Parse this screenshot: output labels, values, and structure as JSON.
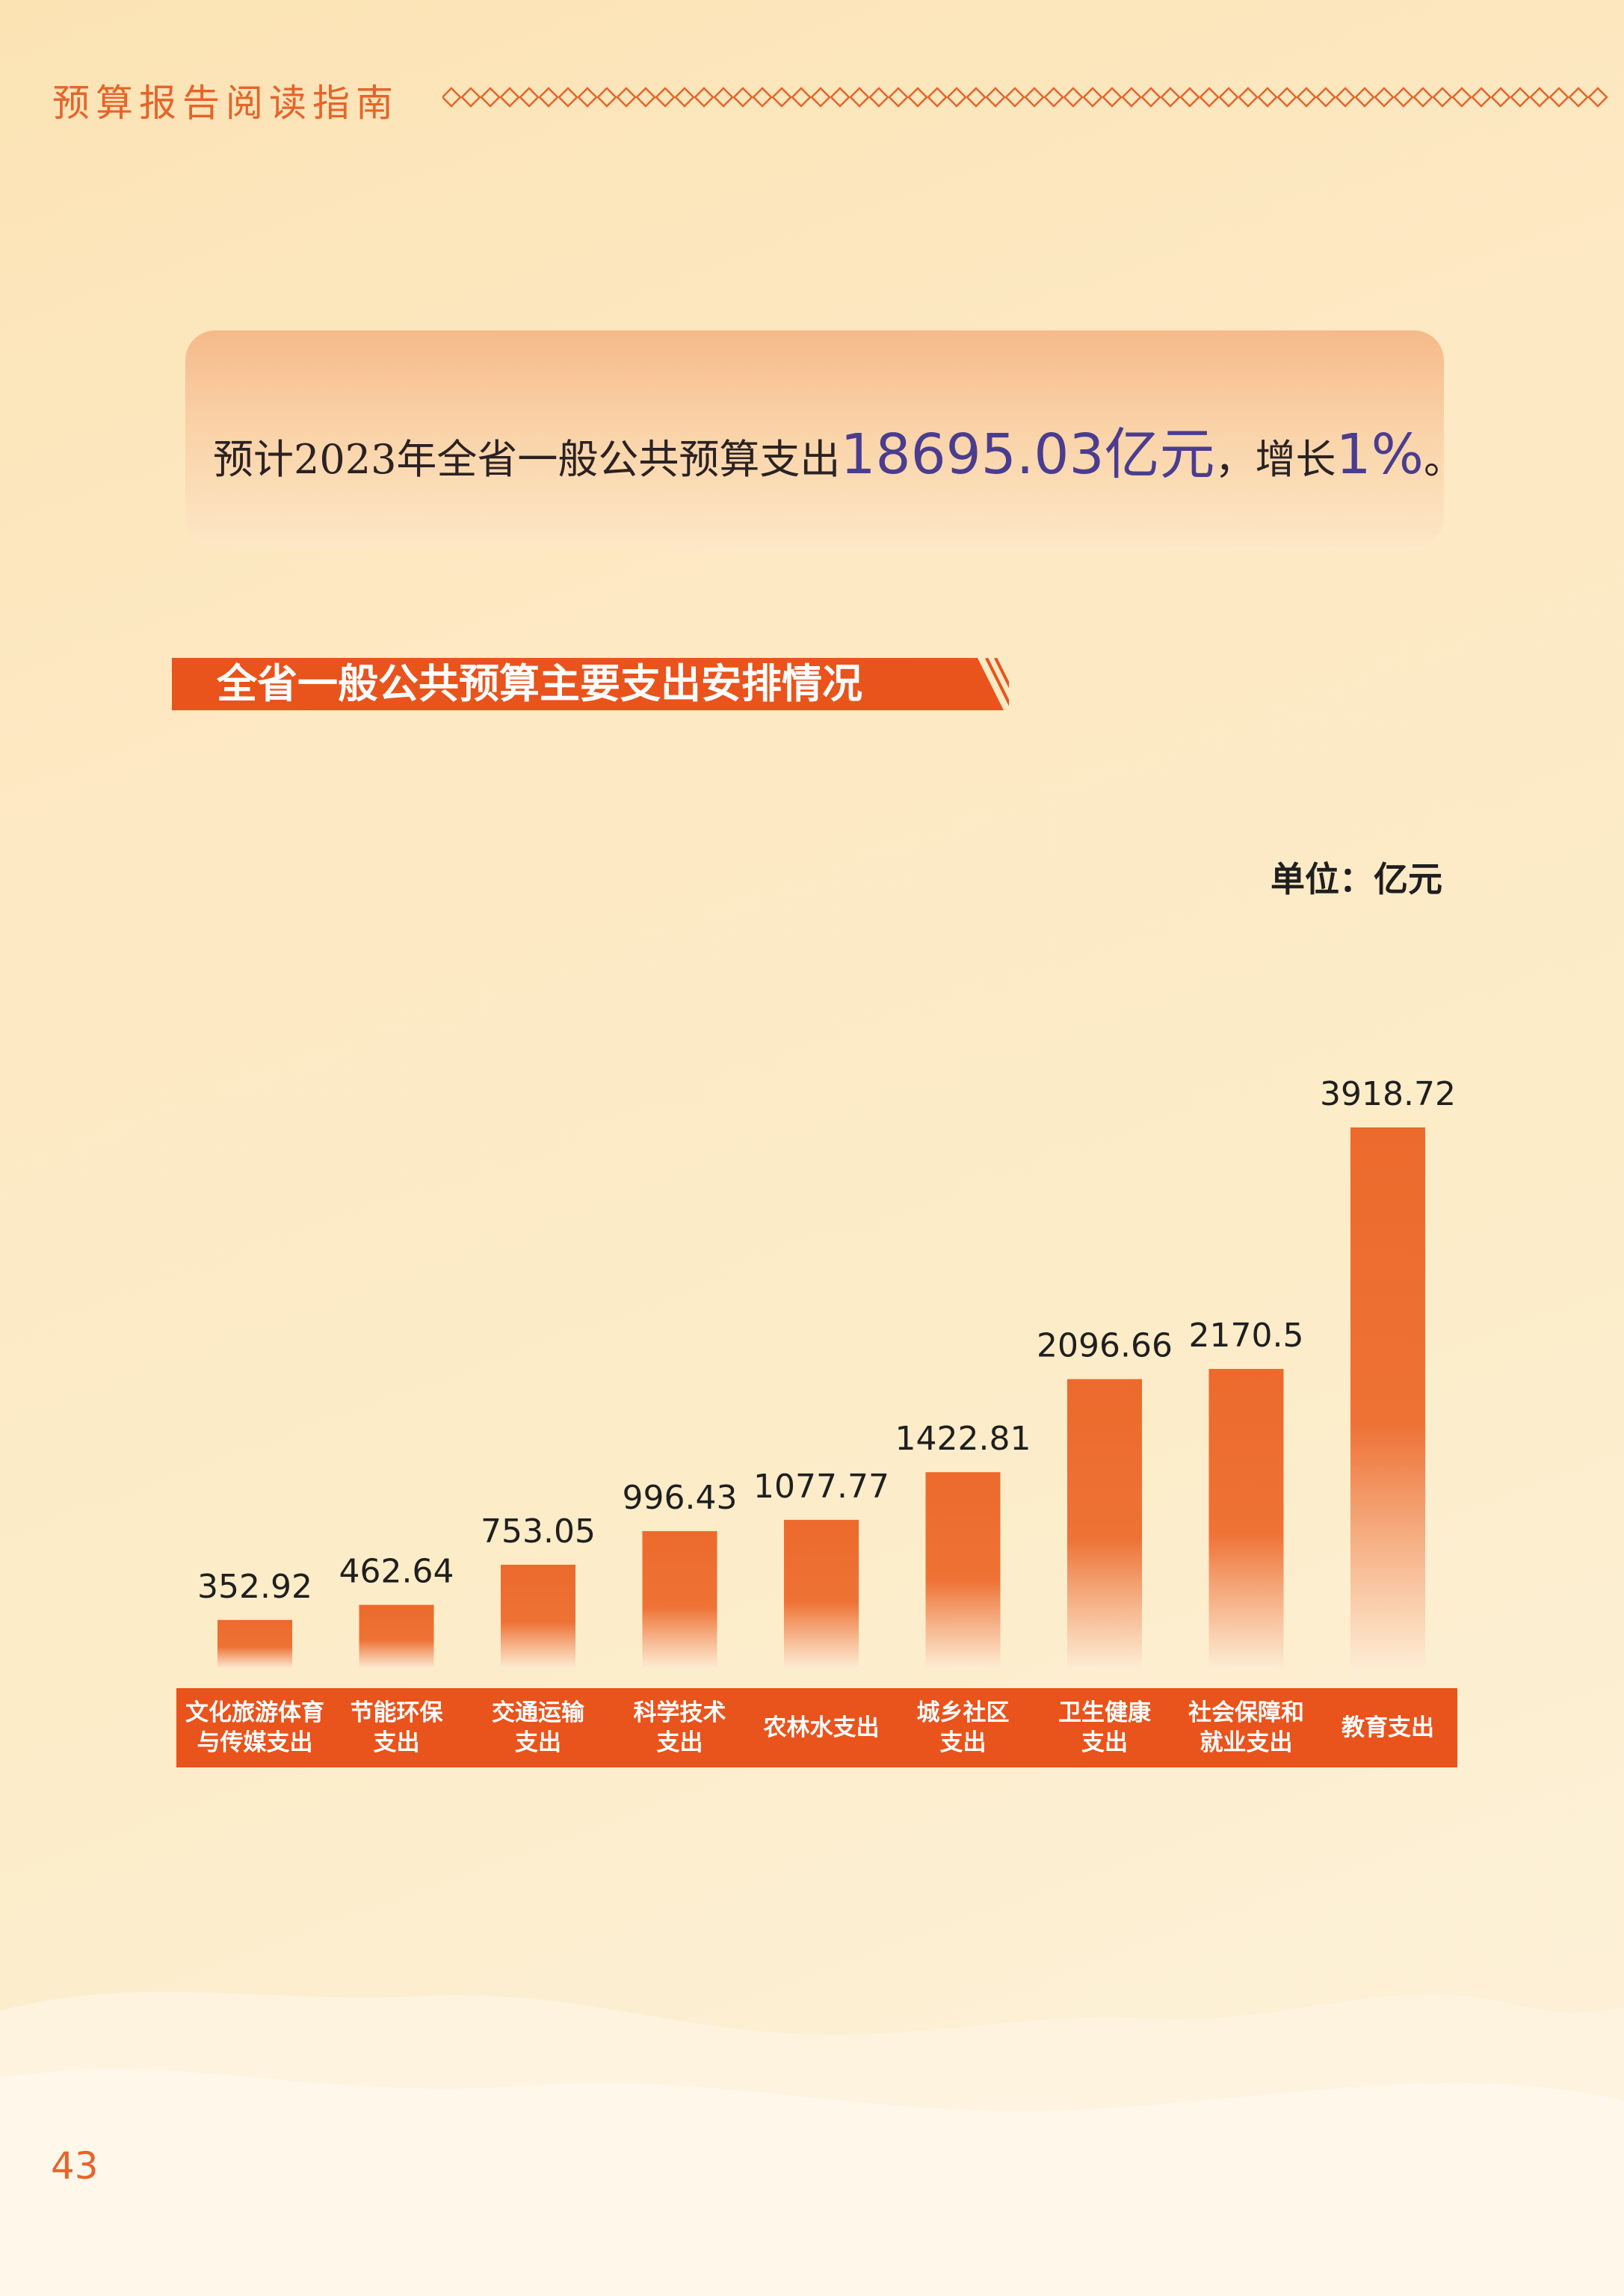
{
  "header": {
    "title": "预算报告阅读指南"
  },
  "summary": {
    "prefix": "预计2023年全省一般公共预算支出",
    "amount": "18695.03亿元",
    "middle": "，增长",
    "growth": "1%",
    "suffix": "。"
  },
  "section": {
    "title": "全省一般公共预算主要支出安排情况"
  },
  "unit": "单位：亿元",
  "page_number": "43",
  "colors": {
    "accent": "#e9531c",
    "bar": "#ec6a2c",
    "highlight": "#4a3d8f"
  },
  "chart_data": {
    "type": "bar",
    "categories": [
      [
        "文化旅游体育",
        "与传媒支出"
      ],
      [
        "节能环保",
        "支出"
      ],
      [
        "交通运输",
        "支出"
      ],
      [
        "科学技术",
        "支出"
      ],
      [
        "农林水支出"
      ],
      [
        "城乡社区",
        "支出"
      ],
      [
        "卫生健康",
        "支出"
      ],
      [
        "社会保障和",
        "就业支出"
      ],
      [
        "教育支出"
      ]
    ],
    "values": [
      352.92,
      462.64,
      753.05,
      996.43,
      1077.77,
      1422.81,
      2096.66,
      2170.5,
      3918.72
    ],
    "value_labels": [
      "352.92",
      "462.64",
      "753.05",
      "996.43",
      "1077.77",
      "1422.81",
      "2096.66",
      "2170.5",
      "3918.72"
    ],
    "ylabel": "单位：亿元"
  }
}
